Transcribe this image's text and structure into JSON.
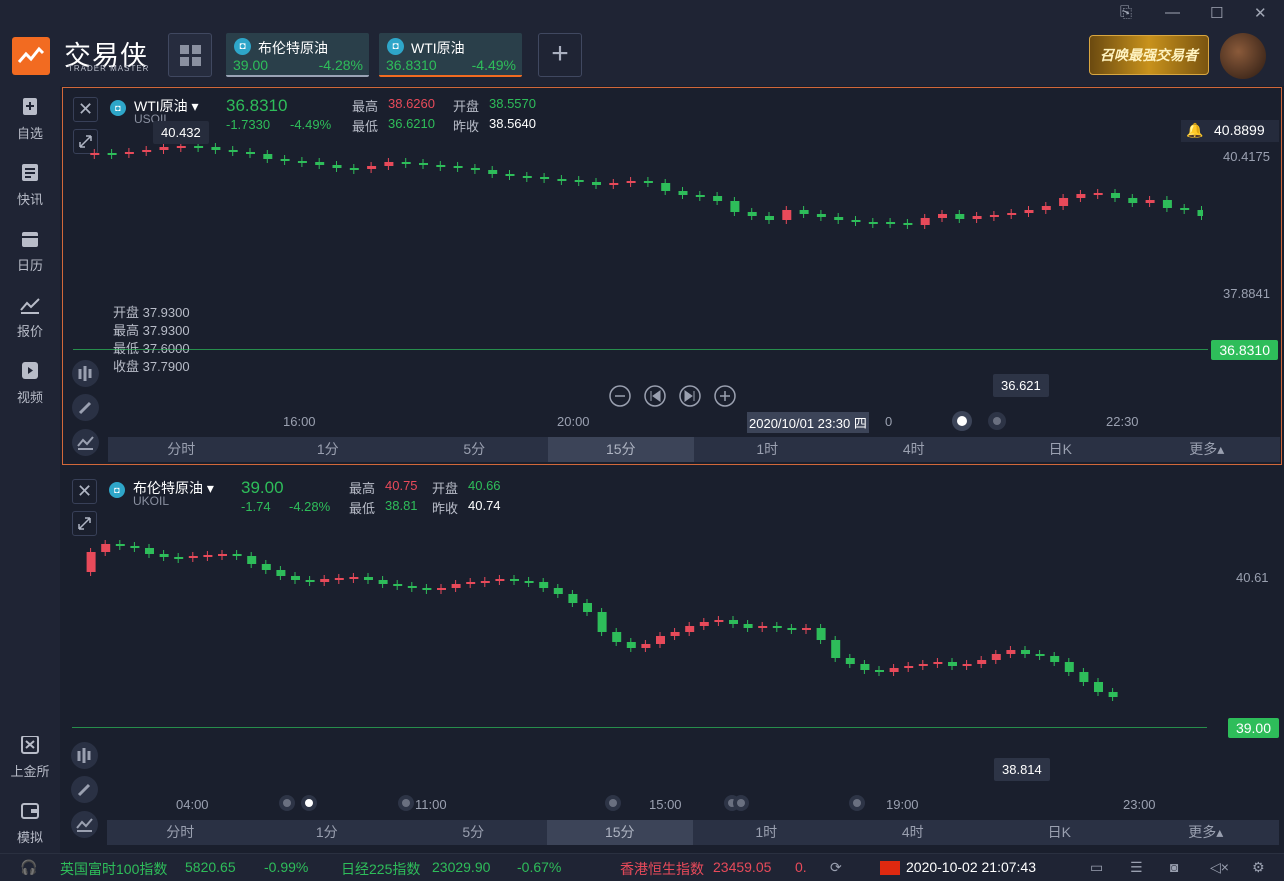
{
  "app": {
    "brand": "交易侠",
    "brand_sub": "TRADER MASTER",
    "banner": "召唤最强交易者",
    "win_controls": [
      "⎘",
      "—",
      "☐",
      "✕"
    ]
  },
  "tabs": [
    {
      "name": "布伦特原油",
      "price": "39.00",
      "change": "-4.28%"
    },
    {
      "name": "WTI原油",
      "price": "36.8310",
      "change": "-4.49%"
    }
  ],
  "sidebar": [
    {
      "label": "自选",
      "icon": "star-add-icon"
    },
    {
      "label": "快讯",
      "icon": "news-icon"
    },
    {
      "label": "日历",
      "icon": "calendar-icon"
    },
    {
      "label": "报价",
      "icon": "quote-icon"
    },
    {
      "label": "视频",
      "icon": "video-icon"
    },
    {
      "label": "上金所",
      "icon": "exchange-icon"
    },
    {
      "label": "模拟",
      "icon": "wallet-icon"
    }
  ],
  "panel1": {
    "name": "WTI原油",
    "code": "USOIL",
    "price": "36.8310",
    "change": "-1.7330",
    "change_pct": "-4.49%",
    "high_label": "最高",
    "high": "38.6260",
    "low_label": "最低",
    "low": "36.6210",
    "open_label": "开盘",
    "open": "38.5570",
    "prev_label": "昨收",
    "prev": "38.5640",
    "alert_price": "40.8899",
    "axis_right": [
      "40.4175",
      "37.8841"
    ],
    "price_tag": "36.8310",
    "high_marker": "40.432",
    "low_marker": "36.621",
    "ohlc": [
      "开盘 37.9300",
      "最高 37.9300",
      "最低 37.6000",
      "收盘 37.7900"
    ],
    "time_axis": [
      "16:00",
      "20:00",
      "22:30"
    ],
    "crosshair_time": "2020/10/01 23:30 四",
    "crosshair_time_tail": "0",
    "timeframes": [
      "分时",
      "1分",
      "5分",
      "15分",
      "1时",
      "4时",
      "日K",
      "更多▴"
    ],
    "active_tf": "15分"
  },
  "panel2": {
    "name": "布伦特原油",
    "code": "UKOIL",
    "price": "39.00",
    "change": "-1.74",
    "change_pct": "-4.28%",
    "high_label": "最高",
    "high": "40.75",
    "low_label": "最低",
    "low": "38.81",
    "open_label": "开盘",
    "open": "40.66",
    "prev_label": "昨收",
    "prev": "40.74",
    "axis_right": [
      "40.61"
    ],
    "price_tag": "39.00",
    "low_marker": "38.814",
    "time_axis": [
      "04:00",
      "11:00",
      "15:00",
      "19:00",
      "23:00"
    ],
    "timeframes": [
      "分时",
      "1分",
      "5分",
      "15分",
      "1时",
      "4时",
      "日K",
      "更多▴"
    ],
    "active_tf": "15分"
  },
  "status": {
    "ftse_name": "英国富时100指数",
    "ftse_val": "5820.65",
    "ftse_chg": "-0.99%",
    "nikkei_name": "日经225指数",
    "nikkei_val": "23029.90",
    "nikkei_chg": "-0.67%",
    "hsi_name": "香港恒生指数",
    "hsi_val": "23459.05",
    "hsi_chg": "0.",
    "datetime": "2020-10-02 21:07:43"
  }
}
